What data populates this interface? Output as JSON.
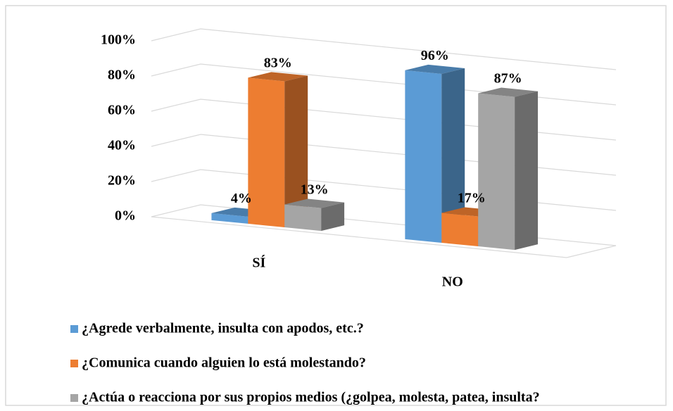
{
  "chart_data": {
    "type": "bar3d",
    "categories": [
      "SÍ",
      "NO"
    ],
    "series": [
      {
        "name": "¿Agrede verbalmente, insulta con apodos, etc.?",
        "color": "#5b9bd5",
        "values": [
          4,
          96
        ],
        "value_labels": [
          "4%",
          "96%"
        ]
      },
      {
        "name": "¿Comunica cuando alguien lo está molestando?",
        "color": "#ed7d31",
        "values": [
          83,
          17
        ],
        "value_labels": [
          "83%",
          "17%"
        ]
      },
      {
        "name": "¿Actúa o reacciona por sus propios medios (¿golpea, molesta, patea, insulta?",
        "color": "#a5a5a5",
        "values": [
          13,
          87
        ],
        "value_labels": [
          "13%",
          "87%"
        ]
      }
    ],
    "ylim": [
      0,
      100
    ],
    "yticks": [
      {
        "value": 0,
        "label": "0%"
      },
      {
        "value": 20,
        "label": "20%"
      },
      {
        "value": 40,
        "label": "40%"
      },
      {
        "value": 60,
        "label": "60%"
      },
      {
        "value": 80,
        "label": "80%"
      },
      {
        "value": 100,
        "label": "100%"
      }
    ],
    "grid": true,
    "legend": "bottom"
  }
}
